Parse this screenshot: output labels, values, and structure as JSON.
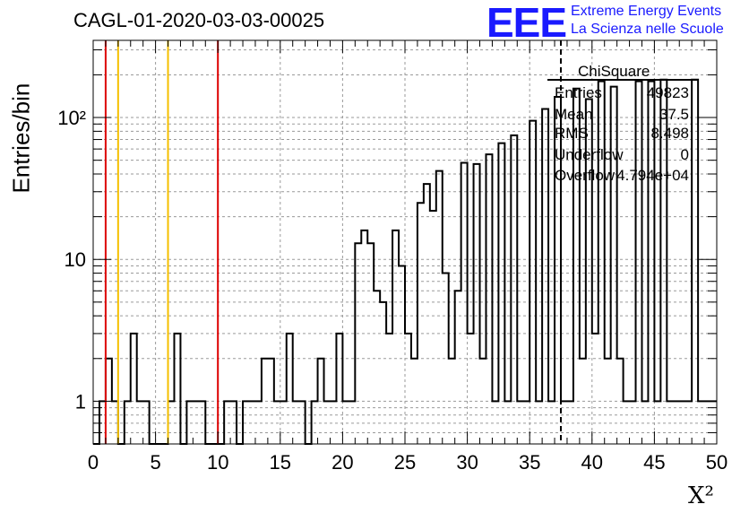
{
  "title": "CAGL-01-2020-03-03-00025",
  "logo": {
    "mark": "EEE",
    "line1": "Extreme Energy Events",
    "line2": "La Scienza nelle Scuole",
    "color": "#1a1aff"
  },
  "stats": {
    "title": "ChiSquare",
    "entries_label": "Entries",
    "entries_value": "49823",
    "mean_label": "Mean",
    "mean_value": "37.5",
    "rms_label": "RMS",
    "rms_value": "8.498",
    "underflow_label": "Underflow",
    "underflow_value": "0",
    "overflow_label": "Overflow",
    "overflow_value": "4.794e+04"
  },
  "chart_data": {
    "type": "histogram",
    "title": "CAGL-01-2020-03-03-00025",
    "xlabel": "X²",
    "ylabel": "Entries/bin",
    "xlim": [
      0,
      50
    ],
    "ylim": [
      0.5,
      350
    ],
    "yscale": "log",
    "grid": true,
    "bin_width": 0.5,
    "x_ticks": [
      "0",
      "5",
      "10",
      "15",
      "20",
      "25",
      "30",
      "35",
      "40",
      "45",
      "50"
    ],
    "y_ticks": [
      "1",
      "10",
      "10²"
    ],
    "bins": [
      [
        0.5,
        1
      ],
      [
        1.0,
        2
      ],
      [
        1.5,
        1
      ],
      [
        2.5,
        1
      ],
      [
        3.0,
        3
      ],
      [
        3.5,
        1
      ],
      [
        4.0,
        1
      ],
      [
        6.0,
        1
      ],
      [
        6.5,
        3
      ],
      [
        7.5,
        1
      ],
      [
        8.0,
        1
      ],
      [
        8.5,
        1
      ],
      [
        10.5,
        1
      ],
      [
        11.0,
        1
      ],
      [
        12.0,
        1
      ],
      [
        12.5,
        1
      ],
      [
        13.0,
        1
      ],
      [
        13.5,
        2
      ],
      [
        14.0,
        2
      ],
      [
        14.5,
        1
      ],
      [
        15.0,
        1
      ],
      [
        15.5,
        3
      ],
      [
        16.0,
        1
      ],
      [
        16.5,
        1
      ],
      [
        17.5,
        1
      ],
      [
        18.0,
        2
      ],
      [
        18.5,
        1
      ],
      [
        19.0,
        1
      ],
      [
        19.5,
        3
      ],
      [
        20.0,
        1
      ],
      [
        20.5,
        1
      ],
      [
        21.0,
        13
      ],
      [
        21.5,
        16
      ],
      [
        22.0,
        13
      ],
      [
        22.5,
        6
      ],
      [
        23.0,
        5
      ],
      [
        23.5,
        3
      ],
      [
        24.0,
        16
      ],
      [
        24.5,
        9
      ],
      [
        25.0,
        3
      ],
      [
        25.5,
        2
      ],
      [
        26.0,
        25
      ],
      [
        26.5,
        34
      ],
      [
        27.0,
        22
      ],
      [
        27.5,
        42
      ],
      [
        28.0,
        8
      ],
      [
        28.5,
        2
      ],
      [
        29.0,
        6
      ],
      [
        29.5,
        48
      ],
      [
        30.0,
        3
      ],
      [
        30.5,
        47
      ],
      [
        31.0,
        2
      ],
      [
        31.5,
        55
      ],
      [
        32.0,
        1
      ],
      [
        32.5,
        66
      ],
      [
        33.0,
        1
      ],
      [
        33.5,
        75
      ],
      [
        34.0,
        1
      ],
      [
        34.5,
        1
      ],
      [
        35.0,
        95
      ],
      [
        35.5,
        1
      ],
      [
        36.0,
        115
      ],
      [
        36.5,
        1
      ],
      [
        37.0,
        140
      ],
      [
        37.5,
        1
      ],
      [
        38.0,
        1
      ],
      [
        38.5,
        160
      ],
      [
        39.0,
        2
      ],
      [
        39.5,
        135
      ],
      [
        40.0,
        3
      ],
      [
        40.5,
        180
      ],
      [
        41.0,
        2
      ],
      [
        41.5,
        165
      ],
      [
        42.0,
        2
      ],
      [
        42.5,
        1
      ],
      [
        43.0,
        1
      ],
      [
        43.5,
        180
      ],
      [
        44.0,
        1
      ],
      [
        44.5,
        180
      ],
      [
        45.0,
        1
      ],
      [
        45.5,
        185
      ],
      [
        46.0,
        1
      ],
      [
        46.5,
        1
      ],
      [
        47.0,
        1
      ],
      [
        47.5,
        1
      ],
      [
        48.0,
        185
      ],
      [
        48.5,
        1
      ],
      [
        49.0,
        1
      ],
      [
        49.5,
        1
      ]
    ],
    "vlines": [
      {
        "x": 1,
        "color": "#dd0000"
      },
      {
        "x": 2,
        "color": "#f5c000"
      },
      {
        "x": 6,
        "color": "#f5c000"
      },
      {
        "x": 10,
        "color": "#dd0000"
      }
    ],
    "dashed_vline": {
      "x": 37.5,
      "color": "#000000"
    }
  }
}
